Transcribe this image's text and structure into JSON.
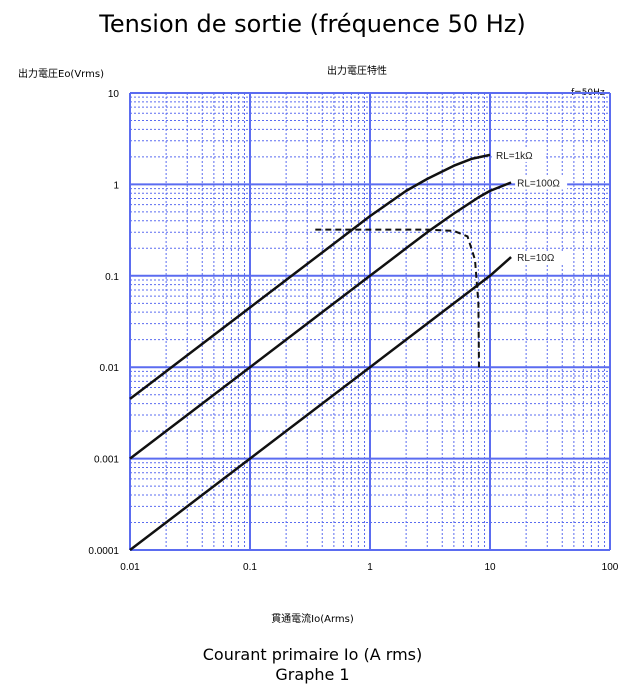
{
  "title": "Tension de sortie (fréquence 50 Hz)",
  "ylabel": "出力電圧Eo(Vrms)",
  "chart_title_jp": "出力電圧特性",
  "frequency_note": "f=50Hz",
  "xlabel_jp": "貫通電流Io(Arms)",
  "xlabel_fr": "Courant primaire Io (A rms)",
  "caption": "Graphe 1",
  "colors": {
    "grid": "#5b6cf0",
    "curve": "#111111"
  },
  "chart_data": {
    "type": "line",
    "x_scale": "log",
    "y_scale": "log",
    "xlim": [
      0.01,
      100
    ],
    "ylim": [
      0.0001,
      10
    ],
    "x_ticks": [
      "0.01",
      "0.1",
      "1",
      "10",
      "100"
    ],
    "y_ticks": [
      "10",
      "1",
      "0.1",
      "0.01",
      "0.001",
      "0.0001"
    ],
    "grid": true,
    "series": [
      {
        "name": "RL=1kΩ",
        "x": [
          0.01,
          0.03,
          0.1,
          0.3,
          1,
          2,
          3,
          5,
          7,
          10
        ],
        "y": [
          0.0045,
          0.0135,
          0.045,
          0.135,
          0.45,
          0.85,
          1.15,
          1.6,
          1.9,
          2.1
        ]
      },
      {
        "name": "RL=100Ω",
        "x": [
          0.01,
          0.1,
          1,
          2,
          3,
          5,
          8,
          10,
          15
        ],
        "y": [
          0.001,
          0.01,
          0.1,
          0.2,
          0.3,
          0.48,
          0.72,
          0.85,
          1.05
        ]
      },
      {
        "name": "RL=10Ω",
        "x": [
          0.01,
          0.1,
          1,
          5,
          10,
          15
        ],
        "y": [
          0.0001,
          0.001,
          0.01,
          0.05,
          0.1,
          0.16
        ]
      }
    ],
    "limit_curve": {
      "style": "dashed",
      "x": [
        0.35,
        1,
        3,
        5,
        6.5,
        7.5,
        8,
        8.1
      ],
      "y": [
        0.32,
        0.32,
        0.32,
        0.31,
        0.27,
        0.15,
        0.05,
        0.01
      ]
    }
  }
}
